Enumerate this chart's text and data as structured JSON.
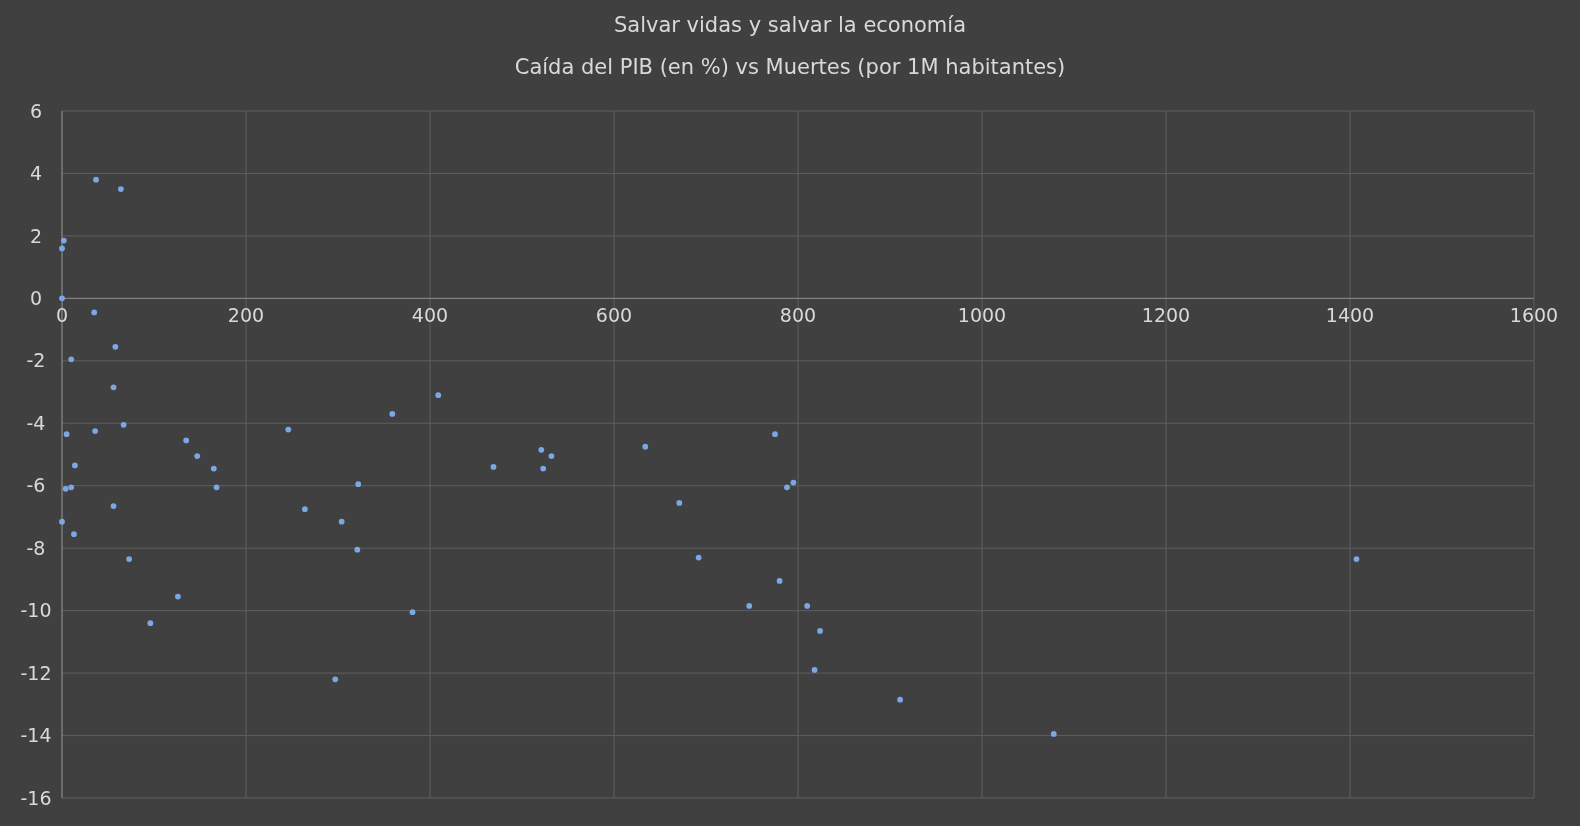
{
  "chart_data": {
    "type": "scatter",
    "title": "Salvar vidas y salvar la economía",
    "subtitle": "Caída del PIB (en %) vs Muertes (por 1M habitantes)",
    "x": [
      37,
      64,
      2,
      0,
      0,
      35,
      10,
      58,
      56,
      5,
      36,
      67,
      14,
      4,
      10,
      0,
      13,
      56,
      73,
      96,
      135,
      147,
      165,
      168,
      126,
      246,
      264,
      297,
      304,
      322,
      321,
      359,
      381,
      409,
      469,
      521,
      523,
      532,
      634,
      671,
      692,
      747,
      775,
      780,
      788,
      795,
      810,
      818,
      824,
      911,
      1078,
      1407
    ],
    "series": [
      {
        "color": "#7ba7e6",
        "values": [
          3.8,
          3.5,
          1.85,
          1.6,
          0,
          -0.45,
          -1.95,
          -1.55,
          -2.85,
          -4.35,
          -4.25,
          -4.05,
          -5.35,
          -6.1,
          -6.05,
          -7.15,
          -7.55,
          -6.65,
          -8.35,
          -10.4,
          -4.55,
          -5.05,
          -5.45,
          -6.05,
          -9.55,
          -4.2,
          -6.75,
          -12.2,
          -7.15,
          -5.95,
          -8.05,
          -3.7,
          -10.05,
          -3.1,
          -5.4,
          -4.85,
          -5.45,
          -5.05,
          -4.75,
          -6.55,
          -8.3,
          -9.85,
          -4.35,
          -9.05,
          -6.05,
          -5.9,
          -9.85,
          -11.9,
          -10.65,
          -12.85,
          -13.95,
          -8.35
        ]
      }
    ],
    "xlim": [
      0,
      1600
    ],
    "xticks": [
      0,
      200,
      400,
      600,
      800,
      1000,
      1200,
      1400,
      1600
    ],
    "ylim": [
      -16,
      6
    ],
    "yticks": [
      -16,
      -14,
      -12,
      -10,
      -8,
      -6,
      -4,
      -2,
      0,
      2,
      4,
      6
    ],
    "grid": true,
    "marker": "circle"
  }
}
